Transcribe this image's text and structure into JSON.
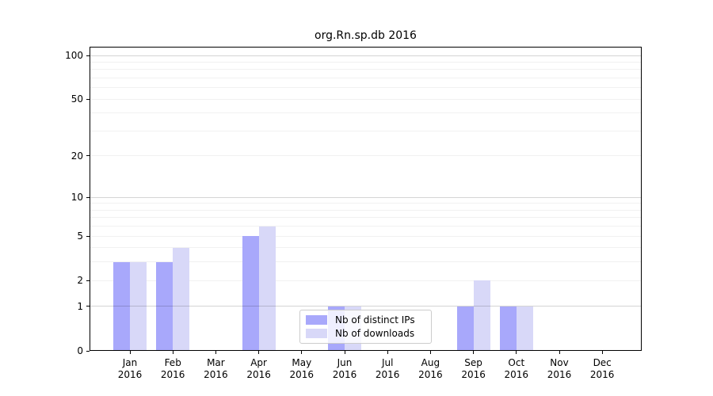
{
  "title": "org.Rn.sp.db 2016",
  "chart_data": {
    "type": "bar",
    "title": "org.Rn.sp.db 2016",
    "y_scale": "log10(value+1)",
    "categories": [
      "Jan",
      "Feb",
      "Mar",
      "Apr",
      "May",
      "Jun",
      "Jul",
      "Aug",
      "Sep",
      "Oct",
      "Nov",
      "Dec"
    ],
    "category_year": "2016",
    "series": [
      {
        "name": "Nb of distinct IPs",
        "color": "#a8a8fb",
        "values": [
          3,
          3,
          0,
          5,
          0,
          1,
          0,
          0,
          1,
          1,
          0,
          0
        ]
      },
      {
        "name": "Nb of downloads",
        "color": "#d8d8f8",
        "values": [
          3,
          4,
          0,
          6,
          0,
          1,
          0,
          0,
          2,
          1,
          0,
          0
        ]
      }
    ],
    "yticks": [
      0,
      1,
      2,
      5,
      10,
      20,
      50,
      100
    ],
    "ytick_labels": [
      "0",
      "1",
      "2",
      "5",
      "10",
      "20",
      "50",
      "100"
    ],
    "major_gridlines": [
      1,
      10,
      100
    ],
    "minor_gridlines": [
      2,
      3,
      4,
      5,
      6,
      7,
      8,
      9,
      20,
      30,
      40,
      50,
      60,
      70,
      80,
      90
    ],
    "ylim": [
      0,
      115
    ],
    "grid": true,
    "legend_position": "lower-center-inside"
  },
  "legend": {
    "items": [
      {
        "label": "Nb of distinct IPs",
        "color": "#a8a8fb"
      },
      {
        "label": "Nb of downloads",
        "color": "#d8d8f8"
      }
    ]
  }
}
